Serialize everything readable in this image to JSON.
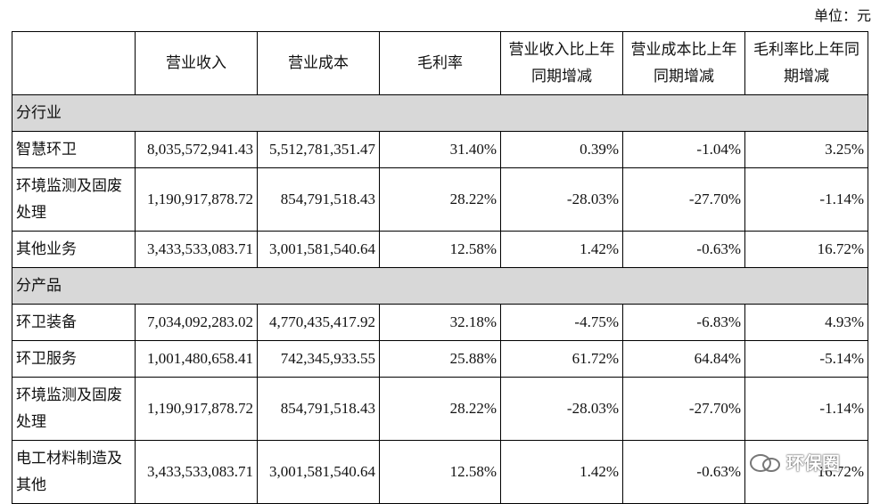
{
  "unit": "单位：元",
  "table": {
    "header": [
      "营业收入",
      "营业成本",
      "毛利率",
      "营业收入比上年同期增减",
      "营业成本比上年同期增减",
      "毛利率比上年同期增减"
    ],
    "sections": [
      {
        "title": "分行业",
        "rows": [
          [
            "智慧环卫",
            "8,035,572,941.43",
            "5,512,781,351.47",
            "31.40%",
            "0.39%",
            "-1.04%",
            "3.25%"
          ],
          [
            "环境监测及固废处理",
            "1,190,917,878.72",
            "854,791,518.43",
            "28.22%",
            "-28.03%",
            "-27.70%",
            "-1.14%"
          ],
          [
            "其他业务",
            "3,433,533,083.71",
            "3,001,581,540.64",
            "12.58%",
            "1.42%",
            "-0.63%",
            "16.72%"
          ]
        ]
      },
      {
        "title": "分产品",
        "rows": [
          [
            "环卫装备",
            "7,034,092,283.02",
            "4,770,435,417.92",
            "32.18%",
            "-4.75%",
            "-6.83%",
            "4.93%"
          ],
          [
            "环卫服务",
            "1,001,480,658.41",
            "742,345,933.55",
            "25.88%",
            "61.72%",
            "64.84%",
            "-5.14%"
          ],
          [
            "环境监测及固废处理",
            "1,190,917,878.72",
            "854,791,518.43",
            "28.22%",
            "-28.03%",
            "-27.70%",
            "-1.14%"
          ],
          [
            "电工材料制造及其他",
            "3,433,533,083.71",
            "3,001,581,540.64",
            "12.58%",
            "1.42%",
            "-0.63%",
            "16.72%"
          ]
        ]
      }
    ]
  },
  "watermark": "环保圈"
}
